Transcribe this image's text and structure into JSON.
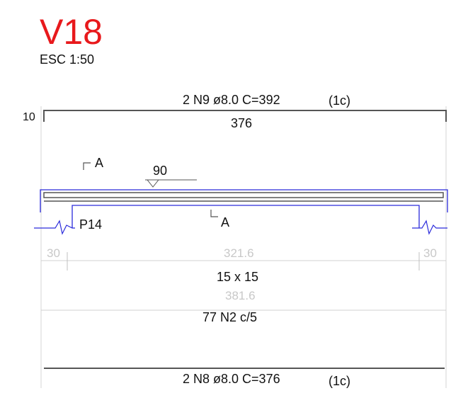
{
  "beam_title": "V18",
  "scale": "ESC 1:50",
  "top_rebar": {
    "label": "2 N9 ø8.0  C=392",
    "layer": "(1c)",
    "hook": "10",
    "length": "376"
  },
  "section_cut": {
    "start": "A",
    "end": "A"
  },
  "level_mark": "90",
  "support_label": "P14",
  "dimensions": {
    "left_support": "30",
    "span": "321.6",
    "right_support": "30",
    "total": "381.6"
  },
  "section_size": "15 x 15",
  "stirrups": "77 N2 c/5",
  "bottom_rebar": {
    "label": "2 N8 ø8.0  C=376",
    "layer": "(1c)"
  },
  "colors": {
    "title": "#e8191c",
    "beam": "#2a2adb",
    "rebar": "#555555",
    "dim": "#c8c8c8",
    "text": "#111111"
  }
}
